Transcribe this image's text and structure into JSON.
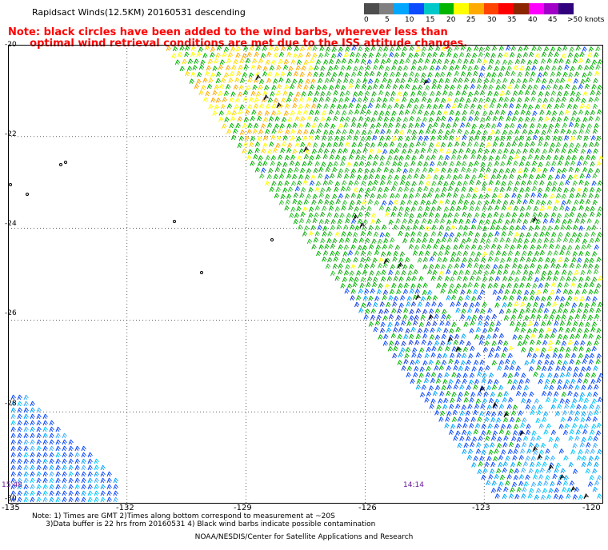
{
  "header": {
    "title": "Rapidsact Winds(12.5KM) 20160531 descending",
    "note_line1": "Note: black circles have been added to the wind barbs, wherever less than",
    "note_line2": "      optimal wind retrieval conditions are met due to the ISS attitude changes."
  },
  "legend": {
    "colors": [
      "#4d4d4d",
      "#808080",
      "#00a6ff",
      "#0d4bff",
      "#00c8c8",
      "#00b400",
      "#ffff00",
      "#ffaa00",
      "#ff4400",
      "#ff0000",
      "#8b2500",
      "#ff00ff",
      "#a000c8",
      "#30007d"
    ],
    "labels": [
      "0",
      "5",
      "10",
      "15",
      "20",
      "25",
      "30",
      "35",
      "40",
      "45",
      ">50 knots"
    ]
  },
  "map": {
    "lat_labels": [
      "-20",
      "-22",
      "-24",
      "-26",
      "-28",
      "-30"
    ],
    "lon_labels": [
      "-135",
      "-132",
      "-129",
      "-126",
      "-123",
      "-120"
    ],
    "time_labels": [
      "15:48",
      "14:14"
    ]
  },
  "chart_data": {
    "type": "wind barb map",
    "extent": {
      "lon": [
        -135,
        -120
      ],
      "lat": [
        -30,
        -20
      ]
    },
    "grid_lon": [
      -132,
      -129,
      -126,
      -123
    ],
    "grid_lat": [
      -22,
      -24,
      -26,
      -28
    ],
    "swaths": [
      {
        "pass_time": "15:48",
        "region": "southwest corner",
        "colors": [
          "#0d4bff",
          "#00a6ff",
          "#00c8c8"
        ]
      },
      {
        "pass_time": "14:14",
        "region": "northeast swath",
        "colors": [
          "#00b400",
          "#0d4bff",
          "#00a6ff",
          "#ffff00",
          "#ffaa00"
        ]
      }
    ]
  },
  "footer": {
    "note": "Note: 1) Times are GMT 2)Times along bottom correspond to measurement at ~20S\n      3)Data buffer is 22 hrs from 20160531 4) Black wind barbs indicate possible contamination",
    "credit": "NOAA/NESDIS/Center for Satellite Applications and Research"
  }
}
